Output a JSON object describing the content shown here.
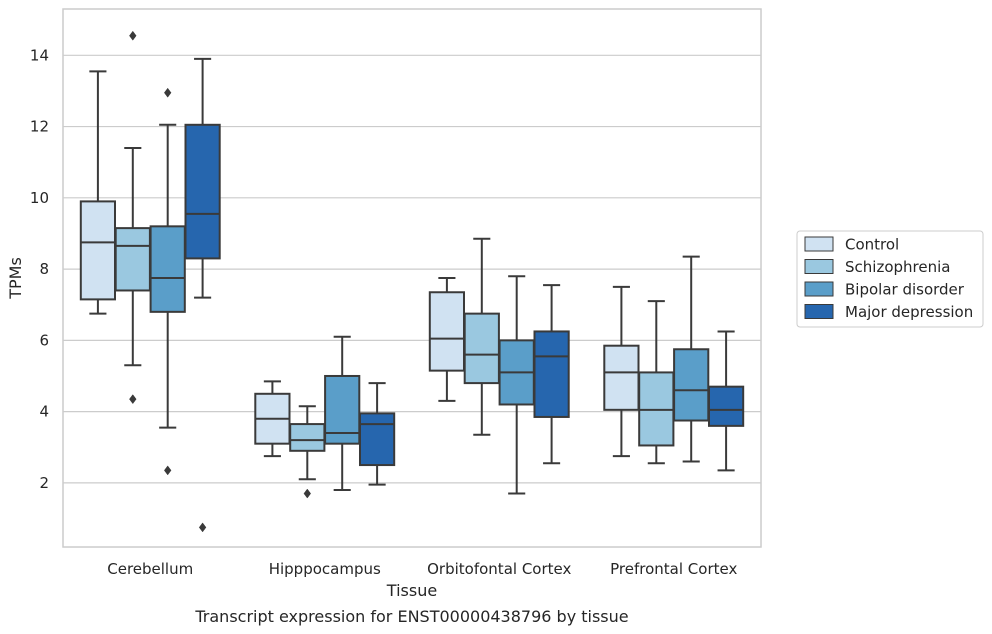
{
  "chart_data": {
    "type": "boxplot",
    "title": "",
    "caption": "Transcript expression for ENST00000438796 by tissue",
    "xlabel": "Tissue",
    "ylabel": "TPMs",
    "ylim": [
      0.2,
      15.3
    ],
    "yticks": [
      2,
      4,
      6,
      8,
      10,
      12,
      14
    ],
    "grid": "horizontal",
    "legend_position": "right",
    "categories": [
      "Cerebellum",
      "Hipppocampus",
      "Orbitofontal Cortex",
      "Prefrontal Cortex"
    ],
    "series": [
      {
        "name": "Control",
        "color": "#d0e2f2",
        "boxes": [
          {
            "whislo": 6.75,
            "q1": 7.15,
            "med": 8.75,
            "q3": 9.9,
            "whishi": 13.55,
            "fliers": []
          },
          {
            "whislo": 2.75,
            "q1": 3.1,
            "med": 3.8,
            "q3": 4.5,
            "whishi": 4.85,
            "fliers": []
          },
          {
            "whislo": 4.3,
            "q1": 5.15,
            "med": 6.05,
            "q3": 7.35,
            "whishi": 7.75,
            "fliers": []
          },
          {
            "whislo": 2.75,
            "q1": 4.05,
            "med": 5.1,
            "q3": 5.85,
            "whishi": 7.5,
            "fliers": []
          }
        ]
      },
      {
        "name": "Schizophrenia",
        "color": "#9ac8e0",
        "boxes": [
          {
            "whislo": 5.3,
            "q1": 7.4,
            "med": 8.65,
            "q3": 9.15,
            "whishi": 11.4,
            "fliers": [
              4.35,
              14.55
            ]
          },
          {
            "whislo": 2.1,
            "q1": 2.9,
            "med": 3.2,
            "q3": 3.65,
            "whishi": 4.15,
            "fliers": [
              1.7
            ]
          },
          {
            "whislo": 3.35,
            "q1": 4.8,
            "med": 5.6,
            "q3": 6.75,
            "whishi": 8.85,
            "fliers": []
          },
          {
            "whislo": 2.55,
            "q1": 3.05,
            "med": 4.05,
            "q3": 5.1,
            "whishi": 7.1,
            "fliers": []
          }
        ]
      },
      {
        "name": "Bipolar disorder",
        "color": "#5a9ec9",
        "boxes": [
          {
            "whislo": 3.55,
            "q1": 6.8,
            "med": 7.75,
            "q3": 9.2,
            "whishi": 12.05,
            "fliers": [
              2.35,
              12.95
            ]
          },
          {
            "whislo": 1.8,
            "q1": 3.1,
            "med": 3.4,
            "q3": 5.0,
            "whishi": 6.1,
            "fliers": []
          },
          {
            "whislo": 1.7,
            "q1": 4.2,
            "med": 5.1,
            "q3": 6.0,
            "whishi": 7.8,
            "fliers": []
          },
          {
            "whislo": 2.6,
            "q1": 3.75,
            "med": 4.6,
            "q3": 5.75,
            "whishi": 8.35,
            "fliers": []
          }
        ]
      },
      {
        "name": "Major depression",
        "color": "#2666ae",
        "boxes": [
          {
            "whislo": 7.2,
            "q1": 8.3,
            "med": 9.55,
            "q3": 12.05,
            "whishi": 13.9,
            "fliers": [
              0.75
            ]
          },
          {
            "whislo": 1.95,
            "q1": 2.5,
            "med": 3.65,
            "q3": 3.95,
            "whishi": 4.8,
            "fliers": []
          },
          {
            "whislo": 2.55,
            "q1": 3.85,
            "med": 5.55,
            "q3": 6.25,
            "whishi": 7.55,
            "fliers": []
          },
          {
            "whislo": 2.35,
            "q1": 3.6,
            "med": 4.05,
            "q3": 4.7,
            "whishi": 6.25,
            "fliers": []
          }
        ]
      }
    ]
  }
}
